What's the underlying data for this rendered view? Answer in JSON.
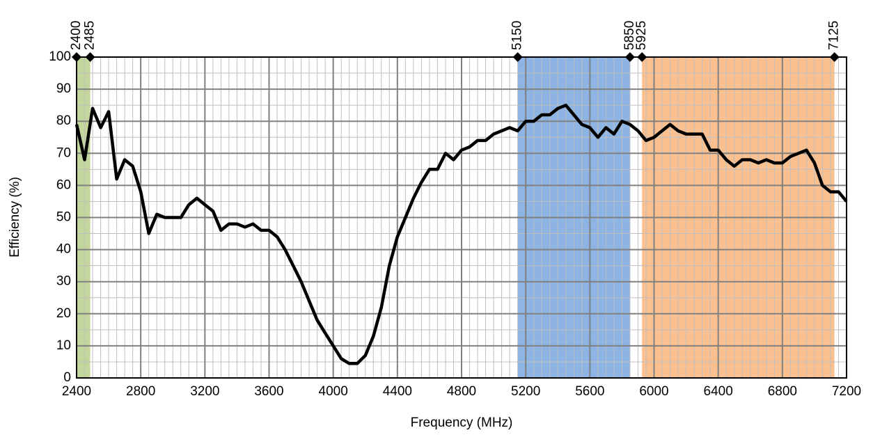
{
  "chart_data": {
    "type": "line",
    "xlabel": "Frequency (MHz)",
    "ylabel": "Efficiency (%)",
    "xlim": [
      2400,
      7200
    ],
    "ylim": [
      0,
      100
    ],
    "xticks": [
      2400,
      2800,
      3200,
      3600,
      4000,
      4400,
      4800,
      5200,
      5600,
      6000,
      6400,
      6800,
      7200
    ],
    "yticks": [
      0,
      10,
      20,
      30,
      40,
      50,
      60,
      70,
      80,
      90,
      100
    ],
    "xminorticks": [
      2450,
      2500,
      2550,
      2600,
      2650,
      2700,
      2750,
      2850,
      2900,
      2950,
      3000,
      3050,
      3100,
      3150,
      3250,
      3300,
      3350,
      3400,
      3450,
      3500,
      3550,
      3650,
      3700,
      3750,
      3800,
      3850,
      3900,
      3950,
      4050,
      4100,
      4150,
      4200,
      4250,
      4300,
      4350,
      4450,
      4500,
      4550,
      4600,
      4650,
      4700,
      4750,
      4850,
      4900,
      4950,
      5000,
      5050,
      5100,
      5150,
      5250,
      5300,
      5350,
      5400,
      5450,
      5500,
      5550,
      5650,
      5700,
      5750,
      5800,
      5850,
      5900,
      5950,
      6050,
      6100,
      6150,
      6200,
      6250,
      6300,
      6350,
      6450,
      6500,
      6550,
      6600,
      6650,
      6700,
      6750,
      6850,
      6900,
      6950,
      7000,
      7050,
      7100,
      7150
    ],
    "yminorticks": [
      5,
      15,
      25,
      35,
      45,
      55,
      65,
      75,
      85,
      95
    ],
    "grid": true,
    "bands": [
      {
        "start": 2400,
        "end": 2485,
        "color": "#c3d69b"
      },
      {
        "start": 5150,
        "end": 5850,
        "color": "#8db4e2"
      },
      {
        "start": 5925,
        "end": 7125,
        "color": "#fac090"
      }
    ],
    "markers": [
      2400,
      2485,
      5150,
      5850,
      5925,
      7125
    ],
    "series": [
      {
        "name": "Efficiency",
        "color": "#000000",
        "x": [
          2400,
          2450,
          2500,
          2550,
          2600,
          2650,
          2700,
          2750,
          2800,
          2850,
          2900,
          2950,
          3000,
          3050,
          3100,
          3150,
          3200,
          3250,
          3300,
          3350,
          3400,
          3450,
          3500,
          3550,
          3600,
          3650,
          3700,
          3750,
          3800,
          3850,
          3900,
          3950,
          4000,
          4050,
          4100,
          4150,
          4200,
          4250,
          4300,
          4350,
          4400,
          4450,
          4500,
          4550,
          4600,
          4650,
          4700,
          4750,
          4800,
          4850,
          4900,
          4950,
          5000,
          5050,
          5100,
          5150,
          5200,
          5250,
          5300,
          5350,
          5400,
          5450,
          5500,
          5550,
          5600,
          5650,
          5700,
          5750,
          5800,
          5850,
          5900,
          5950,
          6000,
          6050,
          6100,
          6150,
          6200,
          6250,
          6300,
          6350,
          6400,
          6450,
          6500,
          6550,
          6600,
          6650,
          6700,
          6750,
          6800,
          6850,
          6900,
          6950,
          7000,
          7050,
          7100,
          7150,
          7200
        ],
        "values": [
          79,
          68,
          84,
          78,
          83,
          62,
          68,
          66,
          58,
          45,
          51,
          50,
          50,
          50,
          54,
          56,
          54,
          52,
          46,
          48,
          48,
          47,
          48,
          46,
          46,
          44,
          40,
          35,
          30,
          24,
          18,
          14,
          10,
          6,
          4.5,
          4.5,
          7,
          13,
          22,
          35,
          44,
          50,
          56,
          61,
          65,
          65,
          70,
          68,
          71,
          72,
          74,
          74,
          76,
          77,
          78,
          77,
          80,
          80,
          82,
          82,
          84,
          85,
          82,
          79,
          78,
          75,
          78,
          76,
          80,
          79,
          77,
          74,
          75,
          77,
          79,
          77,
          76,
          76,
          76,
          71,
          71,
          68,
          66,
          68,
          68,
          67,
          68,
          67,
          67,
          69,
          70,
          71,
          67,
          60,
          58,
          58,
          55
        ]
      }
    ]
  }
}
